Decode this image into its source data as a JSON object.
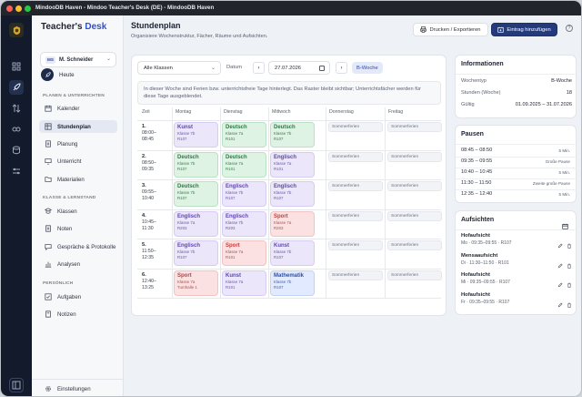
{
  "window": {
    "title": "MindooDB Haven - Mindoo Teacher's Desk (DE) - MindooDB Haven"
  },
  "sidebar": {
    "brand_main": "Teacher's ",
    "brand_accent": "Desk",
    "user": {
      "initials": "MS",
      "name": "M. Schneider"
    },
    "today_label": "Heute",
    "sections": {
      "planning": "PLANEN & UNTERRICHTEN",
      "class": "KLASSE & LERNSTAND",
      "personal": "PERSÖNLICH"
    },
    "items": [
      {
        "label": "Kalender",
        "icon": "calendar-icon"
      },
      {
        "label": "Stundenplan",
        "icon": "timetable-icon"
      },
      {
        "label": "Planung",
        "icon": "planning-icon"
      },
      {
        "label": "Unterricht",
        "icon": "lesson-icon"
      },
      {
        "label": "Materialien",
        "icon": "folder-icon"
      },
      {
        "label": "Klassen",
        "icon": "classes-icon"
      },
      {
        "label": "Noten",
        "icon": "grades-icon"
      },
      {
        "label": "Gespräche & Protokolle",
        "icon": "chat-icon"
      },
      {
        "label": "Analysen",
        "icon": "chart-icon"
      },
      {
        "label": "Aufgaben",
        "icon": "tasks-icon"
      },
      {
        "label": "Notizen",
        "icon": "notes-icon"
      }
    ],
    "settings_label": "Einstellungen"
  },
  "page": {
    "title": "Stundenplan",
    "subtitle": "Organisiere Wochenstruktur, Fächer, Räume und Aufsichten.",
    "print_label": "Drucken / Exportieren",
    "add_label": "Eintrag hinzufügen",
    "help": "?"
  },
  "controls": {
    "class_select": "Alle Klassen",
    "date_label": "Datum",
    "date_value": "27.07.2026",
    "week_badge": "B-Woche"
  },
  "notice": "In dieser Woche sind Ferien bzw. unterrichtsfreie Tage hinterlegt. Das Raster bleibt sichtbar; Unterrichtsfächer werden für diese Tage ausgeblendet.",
  "grid": {
    "headers": [
      "Zeit",
      "Montag",
      "Dienstag",
      "Mittwoch",
      "Donnerstag",
      "Freitag"
    ],
    "holiday_label": "Sommerferien",
    "slots": [
      {
        "num": "1.",
        "start": "08:00–",
        "end": "08:45"
      },
      {
        "num": "2.",
        "start": "08:50–",
        "end": "09:35"
      },
      {
        "num": "3.",
        "start": "09:55–",
        "end": "10:40"
      },
      {
        "num": "4.",
        "start": "10:45–",
        "end": "11:30"
      },
      {
        "num": "5.",
        "start": "11:50–",
        "end": "12:35"
      },
      {
        "num": "6.",
        "start": "12:40–",
        "end": "13:25"
      }
    ],
    "lessons": [
      [
        {
          "subject": "Kunst",
          "cls": "Klasse 7b",
          "room": "R107",
          "color": "purple"
        },
        {
          "subject": "Deutsch",
          "cls": "Klasse 7a",
          "room": "R101",
          "color": "green"
        },
        {
          "subject": "Deutsch",
          "cls": "Klasse 7b",
          "room": "R107",
          "color": "green"
        }
      ],
      [
        {
          "subject": "Deutsch",
          "cls": "Klasse 7b",
          "room": "R107",
          "color": "green"
        },
        {
          "subject": "Deutsch",
          "cls": "Klasse 7a",
          "room": "R101",
          "color": "green"
        },
        {
          "subject": "Englisch",
          "cls": "Klasse 7a",
          "room": "R101",
          "color": "purple"
        }
      ],
      [
        {
          "subject": "Deutsch",
          "cls": "Klasse 7b",
          "room": "R107",
          "color": "green"
        },
        {
          "subject": "Englisch",
          "cls": "Klasse 7b",
          "room": "R107",
          "color": "purple"
        },
        {
          "subject": "Englisch",
          "cls": "Klasse 7b",
          "room": "R107",
          "color": "purple"
        }
      ],
      [
        {
          "subject": "Englisch",
          "cls": "Klasse 7a",
          "room": "R203",
          "color": "purple"
        },
        {
          "subject": "Englisch",
          "cls": "Klasse 7b",
          "room": "R203",
          "color": "purple"
        },
        {
          "subject": "Sport",
          "cls": "Klasse 7a",
          "room": "R203",
          "color": "red"
        }
      ],
      [
        {
          "subject": "Englisch",
          "cls": "Klasse 7b",
          "room": "R107",
          "color": "purple"
        },
        {
          "subject": "Sport",
          "cls": "Klasse 7a",
          "room": "R101",
          "color": "red"
        },
        {
          "subject": "Kunst",
          "cls": "Klasse 7b",
          "room": "R107",
          "color": "purple"
        }
      ],
      [
        {
          "subject": "Sport",
          "cls": "Klasse 7a",
          "room": "Turnhalle 1",
          "color": "red"
        },
        {
          "subject": "Kunst",
          "cls": "Klasse 7a",
          "room": "R101",
          "color": "purple"
        },
        {
          "subject": "Mathematik",
          "cls": "Klasse 7b",
          "room": "R107",
          "color": "blue"
        }
      ]
    ]
  },
  "info": {
    "title": "Informationen",
    "rows": [
      {
        "key": "Wochentyp",
        "value": "B-Woche"
      },
      {
        "key": "Stunden (Woche)",
        "value": "18"
      },
      {
        "key": "Gültig",
        "value": "01.09.2025 – 31.07.2026"
      }
    ]
  },
  "breaks": {
    "title": "Pausen",
    "rows": [
      {
        "time": "08:45 – 08:50",
        "note": "5 Min."
      },
      {
        "time": "09:35 – 09:55",
        "note": "Große Pause"
      },
      {
        "time": "10:40 – 10:45",
        "note": "5 Min."
      },
      {
        "time": "11:30 – 11:50",
        "note": "Zweite große Pause"
      },
      {
        "time": "12:35 – 12:40",
        "note": "5 Min."
      }
    ]
  },
  "supervision": {
    "title": "Aufsichten",
    "rows": [
      {
        "title": "Hofaufsicht",
        "detail": "Mo · 09:35–09:55 · R107"
      },
      {
        "title": "Mensaaufsicht",
        "detail": "Di · 11:30–11:50 · R101"
      },
      {
        "title": "Hofaufsicht",
        "detail": "Mi · 09:35–09:55 · R107"
      },
      {
        "title": "Hofaufsicht",
        "detail": "Fr · 09:35–09:55 · R107"
      }
    ]
  },
  "colors": {
    "primary": "#243a7a",
    "accent": "#2d4fd1",
    "rail": "#131a2c"
  }
}
